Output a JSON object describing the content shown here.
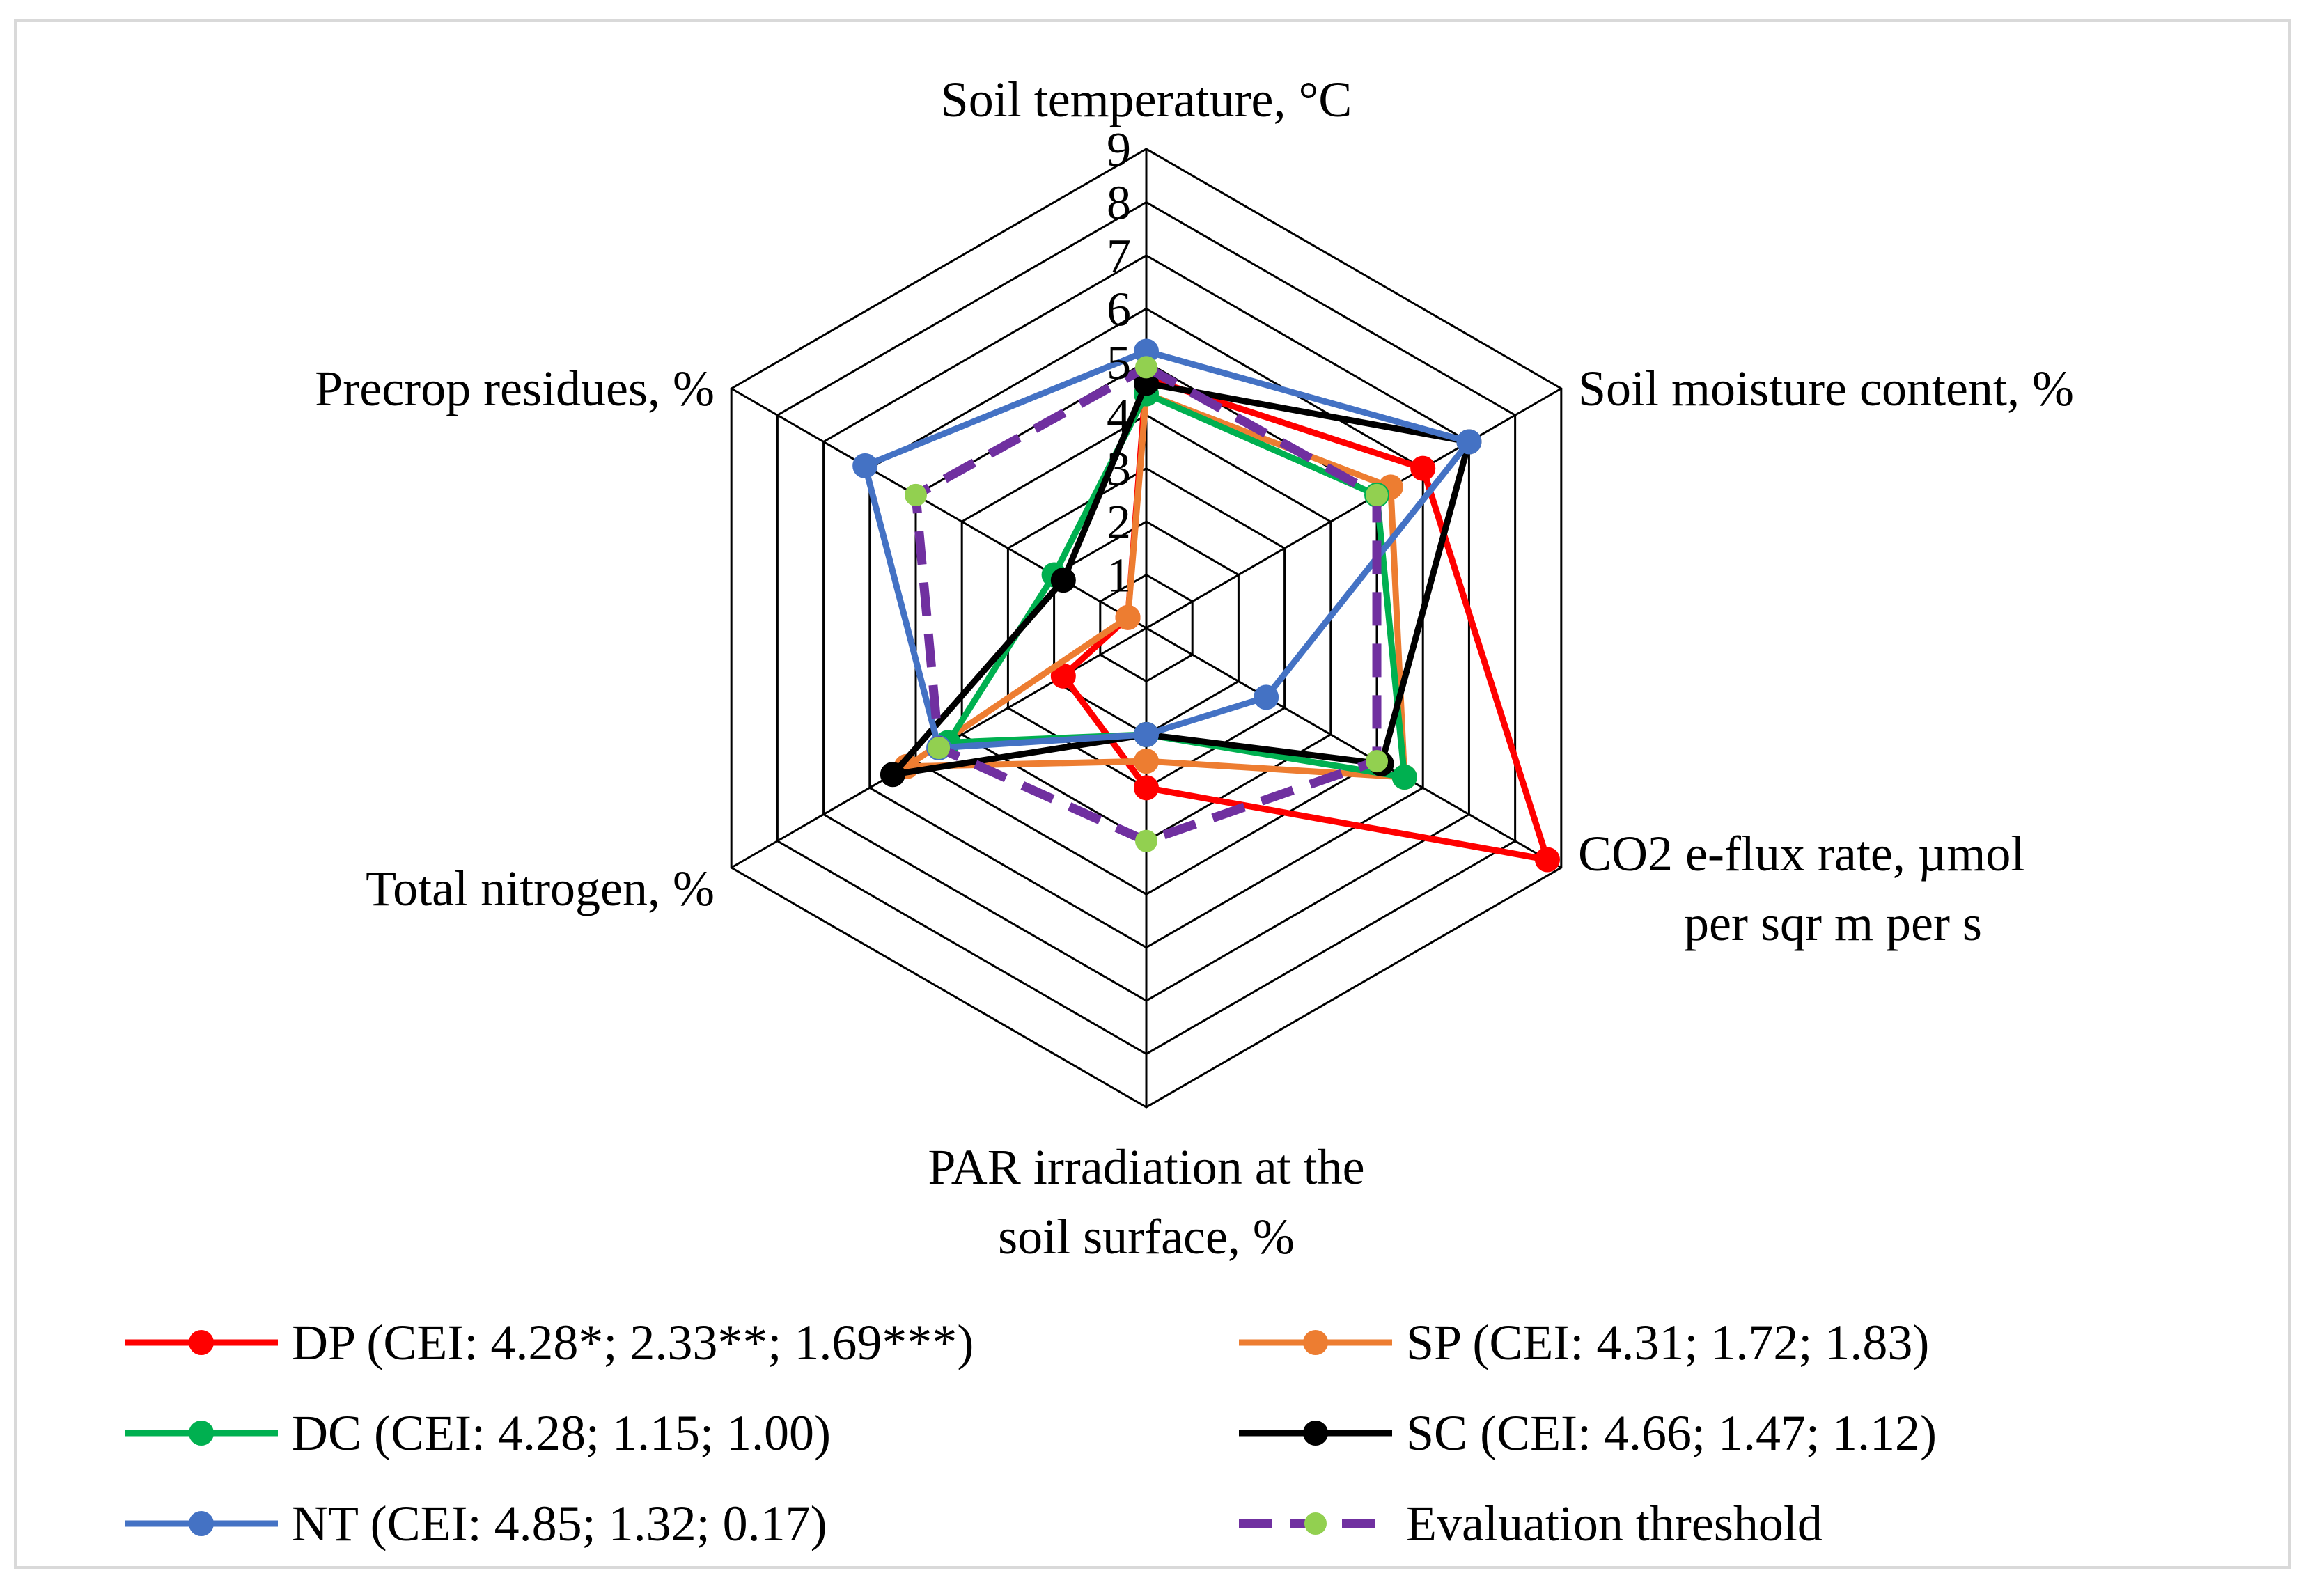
{
  "chart_data": {
    "type": "radar",
    "axes": [
      [
        "Soil temperature, °C"
      ],
      [
        "Soil moisture content, %"
      ],
      [
        "CO2 e-flux rate, µmol",
        "per sqr m per s"
      ],
      [
        "PAR irradiation at the",
        "soil surface, %"
      ],
      [
        "Total nitrogen, %"
      ],
      [
        "Precrop residues, %"
      ]
    ],
    "rlim": [
      0,
      9
    ],
    "ticks": [
      "1",
      "2",
      "3",
      "4",
      "5",
      "6",
      "7",
      "8",
      "9"
    ],
    "grid": true,
    "legend_position": "bottom",
    "series": [
      {
        "name": "DP (CEI: 4.28*; 2.33**; 1.69***)",
        "color": "#ff0000",
        "dashed": false,
        "values": [
          4.7,
          6.0,
          8.7,
          3.0,
          1.8,
          0.4
        ]
      },
      {
        "name": "SP (CEI: 4.31; 1.72; 1.83)",
        "color": "#ed7d31",
        "dashed": false,
        "values": [
          4.4,
          5.3,
          5.6,
          2.5,
          5.2,
          0.4
        ]
      },
      {
        "name": "DC (CEI: 4.28; 1.15; 1.00)",
        "color": "#00b050",
        "dashed": false,
        "values": [
          4.4,
          5.0,
          5.6,
          2.0,
          4.3,
          2.0
        ]
      },
      {
        "name": "SC (CEI:  4.66; 1.47; 1.12)",
        "color": "#000000",
        "dashed": false,
        "values": [
          4.6,
          7.0,
          5.1,
          2.0,
          5.5,
          1.8
        ]
      },
      {
        "name": "NT (CEI: 4.85; 1.32; 0.17)",
        "color": "#4472c4",
        "dashed": false,
        "values": [
          5.2,
          7.0,
          2.6,
          2.0,
          4.5,
          6.1
        ]
      },
      {
        "name": "Evaluation threshold",
        "color": "#7030a0",
        "marker_fill": "#92d050",
        "dashed": true,
        "values": [
          4.9,
          5.0,
          5.0,
          4.0,
          4.5,
          5.0
        ]
      }
    ]
  }
}
